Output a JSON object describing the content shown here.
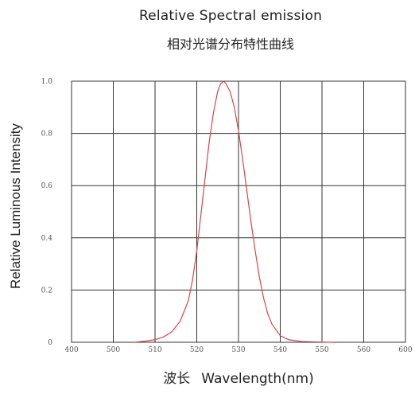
{
  "chart_data": {
    "type": "line",
    "title": "Relative Spectral emission",
    "subtitle": "相对光谱分布特性曲线",
    "xlabel_cn": "波长",
    "xlabel": "Wavelength(nm)",
    "ylabel": "Relative Luminous Intensity",
    "xticks": [
      "400",
      "500",
      "510",
      "520",
      "530",
      "540",
      "550",
      "560",
      "600"
    ],
    "yticks": [
      "0",
      "0.2",
      "0.4",
      "0.6",
      "0.8",
      "1.0"
    ],
    "ylim": [
      0,
      1.0
    ],
    "grid": true,
    "series": [
      {
        "color": "#d94545",
        "x": [
          505,
          508,
          510,
          512,
          514,
          516,
          518,
          519,
          520,
          521,
          522,
          523,
          524,
          525,
          525.7,
          526.5,
          527,
          528,
          529,
          530,
          531,
          532,
          533,
          534,
          535,
          536,
          537,
          538,
          540,
          542,
          545,
          550,
          553
        ],
        "y": [
          0,
          0.005,
          0.01,
          0.02,
          0.04,
          0.08,
          0.16,
          0.24,
          0.35,
          0.49,
          0.63,
          0.77,
          0.88,
          0.96,
          0.99,
          1.0,
          0.99,
          0.96,
          0.9,
          0.81,
          0.7,
          0.58,
          0.46,
          0.35,
          0.25,
          0.17,
          0.11,
          0.07,
          0.025,
          0.01,
          0.003,
          0.001,
          0
        ]
      }
    ]
  }
}
